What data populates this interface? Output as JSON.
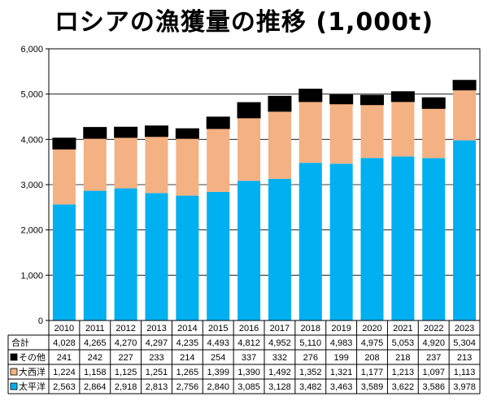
{
  "chart_data": {
    "type": "bar",
    "stacked": true,
    "title": "ロシアの漁獲量の推移 (1,000t)",
    "xlabel": "",
    "ylabel": "",
    "ylim": [
      0,
      6000
    ],
    "yticks": [
      "0",
      "1,000",
      "2,000",
      "3,000",
      "4,000",
      "5,000",
      "6,000"
    ],
    "ytick_values": [
      0,
      1000,
      2000,
      3000,
      4000,
      5000,
      6000
    ],
    "grid": true,
    "categories": [
      "2010",
      "2011",
      "2012",
      "2013",
      "2014",
      "2015",
      "2016",
      "2017",
      "2018",
      "2019",
      "2020",
      "2021",
      "2022",
      "2023"
    ],
    "series": [
      {
        "key": "pacific",
        "name": "太平洋",
        "color": "#00b0f0",
        "values": [
          2563,
          2864,
          2918,
          2813,
          2756,
          2840,
          3085,
          3128,
          3482,
          3463,
          3589,
          3622,
          3586,
          3978
        ],
        "labels": [
          "2,563",
          "2,864",
          "2,918",
          "2,813",
          "2,756",
          "2,840",
          "3,085",
          "3,128",
          "3,482",
          "3,463",
          "3,589",
          "3,622",
          "3,586",
          "3,978"
        ]
      },
      {
        "key": "atlantic",
        "name": "大西洋",
        "color": "#f4b183",
        "values": [
          1224,
          1158,
          1125,
          1251,
          1265,
          1399,
          1390,
          1492,
          1352,
          1321,
          1177,
          1213,
          1097,
          1113
        ],
        "labels": [
          "1,224",
          "1,158",
          "1,125",
          "1,251",
          "1,265",
          "1,399",
          "1,390",
          "1,492",
          "1,352",
          "1,321",
          "1,177",
          "1,213",
          "1,097",
          "1,113"
        ]
      },
      {
        "key": "other",
        "name": "その他",
        "color": "#000000",
        "values": [
          241,
          242,
          227,
          233,
          214,
          254,
          337,
          332,
          276,
          199,
          208,
          218,
          237,
          213
        ],
        "labels": [
          "241",
          "242",
          "227",
          "233",
          "214",
          "254",
          "337",
          "332",
          "276",
          "199",
          "208",
          "218",
          "237",
          "213"
        ]
      }
    ],
    "total": {
      "name": "合計",
      "values": [
        4028,
        4265,
        4270,
        4297,
        4235,
        4493,
        4812,
        4952,
        5110,
        4983,
        4975,
        5053,
        4920,
        5304
      ],
      "labels": [
        "4,028",
        "4,265",
        "4,270",
        "4,297",
        "4,235",
        "4,493",
        "4,812",
        "4,952",
        "5,110",
        "4,983",
        "4,975",
        "5,053",
        "4,920",
        "5,304"
      ]
    },
    "legend": "table-below"
  }
}
